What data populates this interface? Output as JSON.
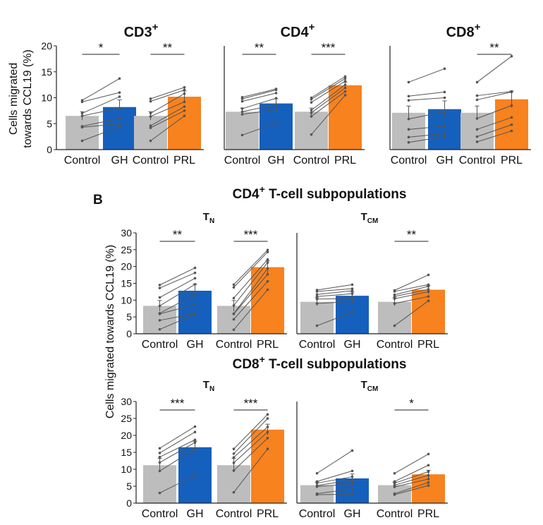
{
  "figure": {
    "panel_letter": "B",
    "top_ylabel": [
      "Cells migrated",
      "towards CCL19 (%)"
    ],
    "bottom_ylabel": "Cells migrated towards CCL19 (%)",
    "section_titles": [
      {
        "base": "CD4",
        "sup": "+",
        "rest": " T-cell subpopulations"
      },
      {
        "base": "CD8",
        "sup": "+",
        "rest": " T-cell subpopulations"
      }
    ],
    "colors": {
      "control": "#bdbdbd",
      "gh": "#1560bd",
      "prl": "#f7821e",
      "line": "#555555",
      "axis": "#222222"
    }
  },
  "chart_data": [
    {
      "type": "bar",
      "title_base": "CD3",
      "title_sup": "+",
      "title_sub": "",
      "ylim": [
        0,
        20
      ],
      "yticks": [
        0,
        5,
        10,
        15,
        20
      ],
      "show_yaxis": true,
      "categories": [
        "Control",
        "GH",
        "Control",
        "PRL"
      ],
      "values": [
        6.5,
        8.2,
        6.5,
        10.2
      ],
      "errors": [
        0.8,
        1.4,
        0.8,
        1.1
      ],
      "significance": [
        {
          "pair": [
            0,
            1
          ],
          "label": "*"
        },
        {
          "pair": [
            2,
            3
          ],
          "label": "**"
        }
      ],
      "paired": [
        [
          [
            9.5,
            13.7
          ],
          [
            9.2,
            11.0
          ],
          [
            7.0,
            10.2
          ],
          [
            6.5,
            8.0
          ],
          [
            4.5,
            6.0
          ],
          [
            4.3,
            5.0
          ],
          [
            1.7,
            4.4
          ]
        ],
        [
          [
            9.8,
            12.0
          ],
          [
            9.3,
            11.5
          ],
          [
            7.0,
            10.8
          ],
          [
            6.4,
            9.2
          ],
          [
            4.6,
            8.3
          ],
          [
            4.2,
            7.5
          ],
          [
            1.7,
            6.5
          ]
        ]
      ]
    },
    {
      "type": "bar",
      "title_base": "CD4",
      "title_sup": "+",
      "title_sub": "",
      "ylim": [
        0,
        20
      ],
      "yticks": [
        0,
        5,
        10,
        15,
        20
      ],
      "show_yaxis": false,
      "categories": [
        "Control",
        "GH",
        "Control",
        "PRL"
      ],
      "values": [
        7.3,
        8.9,
        7.3,
        12.4
      ],
      "errors": [
        0.7,
        0.9,
        0.7,
        0.6
      ],
      "significance": [
        {
          "pair": [
            0,
            1
          ],
          "label": "**"
        },
        {
          "pair": [
            2,
            3
          ],
          "label": "***"
        }
      ],
      "paired": [
        [
          [
            10.1,
            11.7
          ],
          [
            9.8,
            11.5
          ],
          [
            9.3,
            10.9
          ],
          [
            7.9,
            9.9
          ],
          [
            7.3,
            8.7
          ],
          [
            6.8,
            7.7
          ],
          [
            2.8,
            5.1
          ]
        ],
        [
          [
            10.0,
            14.1
          ],
          [
            9.7,
            13.7
          ],
          [
            9.1,
            13.2
          ],
          [
            7.6,
            12.5
          ],
          [
            7.1,
            11.9
          ],
          [
            6.4,
            11.2
          ],
          [
            2.9,
            10.5
          ]
        ]
      ]
    },
    {
      "type": "bar",
      "title_base": "CD8",
      "title_sup": "+",
      "title_sub": "",
      "ylim": [
        0,
        20
      ],
      "yticks": [
        0,
        5,
        10,
        15,
        20
      ],
      "show_yaxis": false,
      "categories": [
        "Control",
        "GH",
        "Control",
        "PRL"
      ],
      "values": [
        7.1,
        7.8,
        7.1,
        9.7
      ],
      "errors": [
        1.3,
        1.6,
        1.3,
        1.6
      ],
      "significance": [
        {
          "pair": [
            2,
            3
          ],
          "label": "**"
        }
      ],
      "paired": [
        [
          [
            13.0,
            15.6
          ],
          [
            10.3,
            11.1
          ],
          [
            9.5,
            10.0
          ],
          [
            5.9,
            7.3
          ],
          [
            3.9,
            4.5
          ],
          [
            2.4,
            3.1
          ],
          [
            1.4,
            2.5
          ]
        ],
        [
          [
            13.0,
            18.0
          ],
          [
            10.4,
            11.2
          ],
          [
            9.6,
            11.1
          ],
          [
            6.0,
            8.5
          ],
          [
            3.9,
            6.2
          ],
          [
            2.5,
            4.8
          ],
          [
            1.5,
            3.6
          ]
        ]
      ]
    },
    {
      "type": "bar",
      "title_base": "T",
      "title_sup": "",
      "title_sub": "N",
      "ylim": [
        0,
        30
      ],
      "yticks": [
        0,
        5,
        10,
        15,
        20,
        25,
        30
      ],
      "show_yaxis": true,
      "categories": [
        "Control",
        "GH",
        "Control",
        "PRL"
      ],
      "values": [
        8.3,
        12.8,
        8.3,
        19.8
      ],
      "errors": [
        1.6,
        2.0,
        1.6,
        1.9
      ],
      "significance": [
        {
          "pair": [
            0,
            1
          ],
          "label": "**"
        },
        {
          "pair": [
            2,
            3
          ],
          "label": "***"
        }
      ],
      "paired": [
        [
          [
            14.5,
            19.6
          ],
          [
            13.6,
            18.1
          ],
          [
            10.8,
            16.5
          ],
          [
            8.3,
            14.7
          ],
          [
            6.1,
            11.7
          ],
          [
            5.9,
            8.7
          ],
          [
            4.0,
            6.0
          ],
          [
            1.3,
            5.8
          ]
        ],
        [
          [
            14.6,
            24.9
          ],
          [
            13.8,
            24.3
          ],
          [
            10.6,
            22.1
          ],
          [
            8.4,
            21.2
          ],
          [
            6.0,
            19.4
          ],
          [
            5.9,
            17.7
          ],
          [
            4.3,
            15.6
          ],
          [
            1.2,
            13.1
          ]
        ]
      ]
    },
    {
      "type": "bar",
      "title_base": "T",
      "title_sup": "",
      "title_sub": "CM",
      "ylim": [
        0,
        30
      ],
      "yticks": [
        0,
        5,
        10,
        15,
        20,
        25,
        30
      ],
      "show_yaxis": false,
      "categories": [
        "Control",
        "GH",
        "Control",
        "PRL"
      ],
      "values": [
        9.5,
        11.3,
        9.5,
        13.1
      ],
      "errors": [
        1.2,
        1.1,
        1.2,
        1.2
      ],
      "significance": [
        {
          "pair": [
            2,
            3
          ],
          "label": "**"
        }
      ],
      "paired": [
        [
          [
            13.0,
            14.6
          ],
          [
            12.6,
            13.4
          ],
          [
            11.7,
            12.8
          ],
          [
            11.1,
            11.9
          ],
          [
            10.3,
            10.5
          ],
          [
            9.0,
            9.6
          ],
          [
            2.4,
            6.4
          ]
        ],
        [
          [
            12.9,
            17.5
          ],
          [
            12.6,
            14.6
          ],
          [
            11.6,
            14.1
          ],
          [
            11.1,
            13.2
          ],
          [
            10.4,
            12.5
          ],
          [
            9.0,
            11.1
          ],
          [
            2.4,
            9.8
          ]
        ]
      ]
    },
    {
      "type": "bar",
      "title_base": "T",
      "title_sup": "",
      "title_sub": "N",
      "ylim": [
        0,
        30
      ],
      "yticks": [
        0,
        5,
        10,
        15,
        20,
        25,
        30
      ],
      "show_yaxis": true,
      "categories": [
        "Control",
        "GH",
        "Control",
        "PRL"
      ],
      "values": [
        11.2,
        16.5,
        11.2,
        21.7
      ],
      "errors": [
        2.0,
        1.8,
        2.0,
        1.6
      ],
      "significance": [
        {
          "pair": [
            0,
            1
          ],
          "label": "***"
        },
        {
          "pair": [
            2,
            3
          ],
          "label": "***"
        }
      ],
      "paired": [
        [
          [
            16.2,
            22.6
          ],
          [
            14.8,
            21.0
          ],
          [
            13.6,
            18.7
          ],
          [
            12.0,
            17.9
          ],
          [
            9.5,
            16.0
          ],
          [
            3.0,
            8.2
          ]
        ],
        [
          [
            16.0,
            26.2
          ],
          [
            14.6,
            25.0
          ],
          [
            13.5,
            22.5
          ],
          [
            11.9,
            21.0
          ],
          [
            9.6,
            19.2
          ],
          [
            3.2,
            16.0
          ]
        ]
      ]
    },
    {
      "type": "bar",
      "title_base": "T",
      "title_sup": "",
      "title_sub": "CM",
      "ylim": [
        0,
        30
      ],
      "yticks": [
        0,
        5,
        10,
        15,
        20,
        25,
        30
      ],
      "show_yaxis": false,
      "categories": [
        "Control",
        "GH",
        "Control",
        "PRL"
      ],
      "values": [
        5.3,
        7.3,
        5.3,
        8.5
      ],
      "errors": [
        0.9,
        1.3,
        0.9,
        1.2
      ],
      "significance": [
        {
          "pair": [
            2,
            3
          ],
          "label": "*"
        }
      ],
      "paired": [
        [
          [
            8.8,
            15.5
          ],
          [
            6.4,
            9.5
          ],
          [
            5.9,
            7.8
          ],
          [
            5.2,
            6.8
          ],
          [
            4.9,
            5.7
          ],
          [
            2.8,
            4.2
          ],
          [
            2.5,
            2.6
          ]
        ],
        [
          [
            8.8,
            14.5
          ],
          [
            6.4,
            11.2
          ],
          [
            5.9,
            9.3
          ],
          [
            5.3,
            8.2
          ],
          [
            4.8,
            7.1
          ],
          [
            2.8,
            6.1
          ],
          [
            2.5,
            5.2
          ]
        ]
      ]
    }
  ]
}
